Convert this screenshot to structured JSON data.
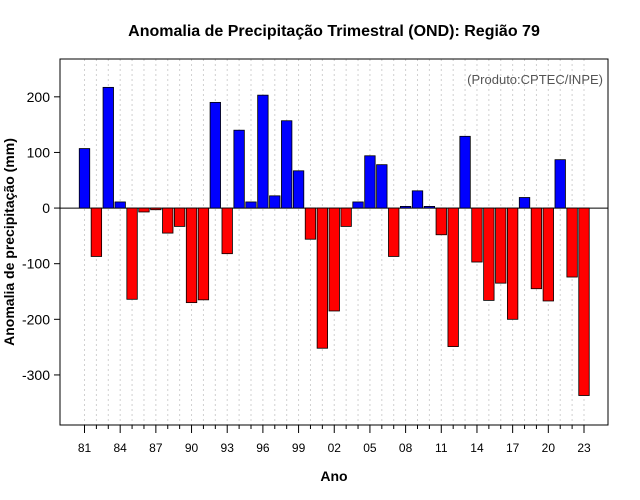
{
  "chart_data": {
    "type": "bar",
    "title": "Anomalia de Precipitação Trimestral (OND): Região 79",
    "xlabel": "Ano",
    "ylabel": "Anomalia de precipitação (mm)",
    "credit": "(Produto:CPTEC/INPE)",
    "ylim": [
      -390,
      268
    ],
    "yticks": [
      -300,
      -200,
      -100,
      0,
      100,
      200
    ],
    "xtick_labels": [
      "81",
      "84",
      "87",
      "90",
      "93",
      "96",
      "99",
      "02",
      "05",
      "08",
      "11",
      "14",
      "17",
      "20",
      "23"
    ],
    "years": [
      1981,
      1982,
      1983,
      1984,
      1985,
      1986,
      1987,
      1988,
      1989,
      1990,
      1991,
      1992,
      1993,
      1994,
      1995,
      1996,
      1997,
      1998,
      1999,
      2000,
      2001,
      2002,
      2003,
      2004,
      2005,
      2006,
      2007,
      2008,
      2009,
      2010,
      2011,
      2012,
      2013,
      2014,
      2015,
      2016,
      2017,
      2018,
      2019,
      2020,
      2021,
      2022,
      2023
    ],
    "values": [
      107,
      -87,
      217,
      11,
      -164,
      -7,
      -3,
      -45,
      -33,
      -170,
      -165,
      190,
      -82,
      140,
      11,
      203,
      22,
      157,
      67,
      -56,
      -252,
      -185,
      -33,
      11,
      94,
      78,
      -87,
      3,
      31,
      3,
      -48,
      -249,
      129,
      -97,
      -166,
      -135,
      -200,
      19,
      -145,
      -167,
      87,
      -124,
      -337
    ],
    "colors": {
      "positive": "#0000ff",
      "negative": "#ff0000",
      "grid": "#d0d0d0"
    },
    "grid": true
  }
}
